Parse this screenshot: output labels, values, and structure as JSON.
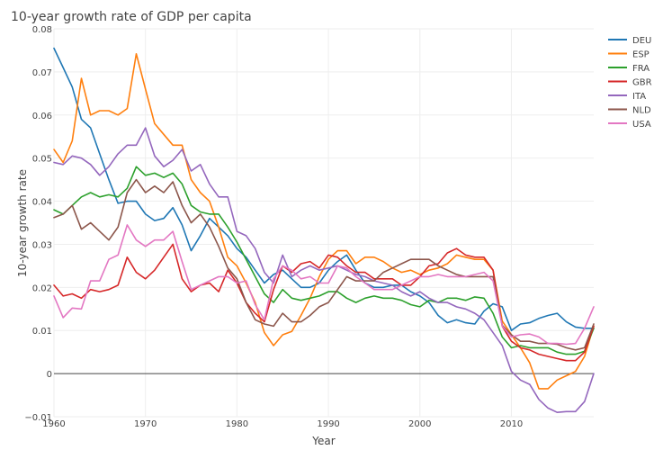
{
  "chart_data": {
    "type": "line",
    "title": "10-year growth rate of GDP per capita",
    "xlabel": "Year",
    "ylabel": "10-year growth rate",
    "xlim": [
      1960,
      2019
    ],
    "ylim": [
      -0.01,
      0.08
    ],
    "x_ticks": [
      1960,
      1970,
      1980,
      1990,
      2000,
      2010
    ],
    "x_tick_labels": [
      "1960",
      "1970",
      "1980",
      "1990",
      "2000",
      "2010"
    ],
    "y_ticks": [
      -0.01,
      0,
      0.01,
      0.02,
      0.03,
      0.04,
      0.05,
      0.06,
      0.07,
      0.08
    ],
    "y_tick_labels": [
      "−0.01",
      "0",
      "0.01",
      "0.02",
      "0.03",
      "0.04",
      "0.05",
      "0.06",
      "0.07",
      "0.08"
    ],
    "grid": true,
    "legend_position": "top-right",
    "x": [
      1960,
      1961,
      1962,
      1963,
      1964,
      1965,
      1966,
      1967,
      1968,
      1969,
      1970,
      1971,
      1972,
      1973,
      1974,
      1975,
      1976,
      1977,
      1978,
      1979,
      1980,
      1981,
      1982,
      1983,
      1984,
      1985,
      1986,
      1987,
      1988,
      1989,
      1990,
      1991,
      1992,
      1993,
      1994,
      1995,
      1996,
      1997,
      1998,
      1999,
      2000,
      2001,
      2002,
      2003,
      2004,
      2005,
      2006,
      2007,
      2008,
      2009,
      2010,
      2011,
      2012,
      2013,
      2014,
      2015,
      2016,
      2017,
      2018,
      2019
    ],
    "series": [
      {
        "name": "DEU",
        "color": "#1f77b4",
        "values": [
          0.0755,
          0.071,
          0.0665,
          0.059,
          0.057,
          0.051,
          0.045,
          0.0395,
          0.04,
          0.04,
          0.037,
          0.0355,
          0.036,
          0.0385,
          0.0345,
          0.0285,
          0.032,
          0.036,
          0.034,
          0.032,
          0.029,
          0.027,
          0.024,
          0.021,
          0.023,
          0.024,
          0.022,
          0.02,
          0.02,
          0.021,
          0.024,
          0.026,
          0.0275,
          0.024,
          0.021,
          0.02,
          0.02,
          0.0205,
          0.0205,
          0.019,
          0.018,
          0.0165,
          0.0135,
          0.0118,
          0.0125,
          0.0118,
          0.0115,
          0.0145,
          0.0162,
          0.0155,
          0.01,
          0.0115,
          0.0118,
          0.0128,
          0.0135,
          0.014,
          0.012,
          0.0108,
          0.0105,
          0.0105
        ]
      },
      {
        "name": "ESP",
        "color": "#ff7f0e",
        "values": [
          0.052,
          0.049,
          0.054,
          0.0685,
          0.06,
          0.061,
          0.061,
          0.06,
          0.0615,
          0.0742,
          0.066,
          0.058,
          0.0555,
          0.053,
          0.053,
          0.045,
          0.042,
          0.04,
          0.034,
          0.027,
          0.025,
          0.021,
          0.0165,
          0.0095,
          0.0065,
          0.009,
          0.0098,
          0.0135,
          0.0175,
          0.0225,
          0.0265,
          0.0285,
          0.0285,
          0.0255,
          0.027,
          0.027,
          0.026,
          0.0245,
          0.0235,
          0.024,
          0.023,
          0.024,
          0.0245,
          0.0255,
          0.0275,
          0.027,
          0.0265,
          0.0265,
          0.024,
          0.0122,
          0.009,
          0.006,
          0.0025,
          -0.0035,
          -0.0035,
          -0.0015,
          -0.0005,
          0.0005,
          0.004,
          0.011
        ]
      },
      {
        "name": "FRA",
        "color": "#2ca02c",
        "values": [
          0.038,
          0.037,
          0.039,
          0.041,
          0.042,
          0.041,
          0.0415,
          0.041,
          0.043,
          0.048,
          0.046,
          0.0465,
          0.0455,
          0.0465,
          0.044,
          0.039,
          0.0375,
          0.037,
          0.037,
          0.034,
          0.0305,
          0.0265,
          0.0225,
          0.0185,
          0.0165,
          0.0195,
          0.0175,
          0.017,
          0.0175,
          0.018,
          0.019,
          0.019,
          0.0175,
          0.0165,
          0.0175,
          0.018,
          0.0175,
          0.0175,
          0.017,
          0.016,
          0.0155,
          0.017,
          0.0165,
          0.0175,
          0.0175,
          0.017,
          0.0178,
          0.0175,
          0.014,
          0.0085,
          0.006,
          0.0065,
          0.006,
          0.006,
          0.006,
          0.005,
          0.0045,
          0.0045,
          0.0052,
          0.0105
        ]
      },
      {
        "name": "GBR",
        "color": "#d62728",
        "values": [
          0.0205,
          0.018,
          0.0185,
          0.0175,
          0.0195,
          0.019,
          0.0195,
          0.0205,
          0.027,
          0.0235,
          0.022,
          0.024,
          0.027,
          0.03,
          0.022,
          0.019,
          0.0205,
          0.021,
          0.019,
          0.024,
          0.021,
          0.0165,
          0.014,
          0.012,
          0.0195,
          0.025,
          0.0235,
          0.0255,
          0.026,
          0.0245,
          0.0275,
          0.027,
          0.025,
          0.0235,
          0.0235,
          0.022,
          0.022,
          0.022,
          0.0205,
          0.0205,
          0.0225,
          0.025,
          0.0255,
          0.028,
          0.029,
          0.0275,
          0.027,
          0.027,
          0.024,
          0.011,
          0.0075,
          0.006,
          0.0055,
          0.0045,
          0.004,
          0.0035,
          0.003,
          0.003,
          0.005,
          0.011
        ]
      },
      {
        "name": "ITA",
        "color": "#9467bd",
        "values": [
          0.049,
          0.0485,
          0.0505,
          0.05,
          0.0485,
          0.046,
          0.048,
          0.051,
          0.053,
          0.053,
          0.057,
          0.0505,
          0.048,
          0.0495,
          0.052,
          0.047,
          0.0485,
          0.044,
          0.041,
          0.041,
          0.033,
          0.032,
          0.029,
          0.0235,
          0.021,
          0.0275,
          0.0225,
          0.024,
          0.025,
          0.024,
          0.0245,
          0.025,
          0.024,
          0.023,
          0.0225,
          0.0215,
          0.021,
          0.0205,
          0.019,
          0.018,
          0.019,
          0.0175,
          0.0165,
          0.0165,
          0.0155,
          0.015,
          0.014,
          0.0125,
          0.0095,
          0.0065,
          0.0005,
          -0.0015,
          -0.0025,
          -0.006,
          -0.008,
          -0.009,
          -0.0088,
          -0.0088,
          -0.0065,
          0.0
        ]
      },
      {
        "name": "NLD",
        "color": "#8c564b",
        "values": [
          0.0362,
          0.037,
          0.039,
          0.0335,
          0.035,
          0.033,
          0.031,
          0.034,
          0.042,
          0.045,
          0.042,
          0.0435,
          0.042,
          0.0445,
          0.039,
          0.035,
          0.037,
          0.034,
          0.0295,
          0.0245,
          0.022,
          0.0165,
          0.0125,
          0.0115,
          0.011,
          0.014,
          0.012,
          0.012,
          0.0135,
          0.0155,
          0.0165,
          0.0195,
          0.0225,
          0.0215,
          0.0215,
          0.0215,
          0.0235,
          0.0245,
          0.0255,
          0.0265,
          0.0265,
          0.0265,
          0.025,
          0.024,
          0.023,
          0.0225,
          0.0225,
          0.0225,
          0.0225,
          0.0112,
          0.009,
          0.0075,
          0.0075,
          0.007,
          0.007,
          0.0068,
          0.006,
          0.0055,
          0.006,
          0.0115
        ]
      },
      {
        "name": "USA",
        "color": "#e377c2",
        "values": [
          0.018,
          0.013,
          0.0152,
          0.015,
          0.0215,
          0.0215,
          0.0265,
          0.0275,
          0.0345,
          0.031,
          0.0295,
          0.031,
          0.031,
          0.033,
          0.026,
          0.0195,
          0.0205,
          0.0215,
          0.0225,
          0.0225,
          0.021,
          0.0215,
          0.016,
          0.0125,
          0.022,
          0.025,
          0.024,
          0.022,
          0.0225,
          0.021,
          0.021,
          0.025,
          0.0245,
          0.0225,
          0.021,
          0.0195,
          0.0195,
          0.0195,
          0.0205,
          0.0215,
          0.0225,
          0.0225,
          0.023,
          0.0225,
          0.0225,
          0.0225,
          0.023,
          0.0235,
          0.0215,
          0.011,
          0.0085,
          0.009,
          0.0092,
          0.0085,
          0.007,
          0.007,
          0.0068,
          0.007,
          0.0105,
          0.0155
        ]
      }
    ]
  }
}
